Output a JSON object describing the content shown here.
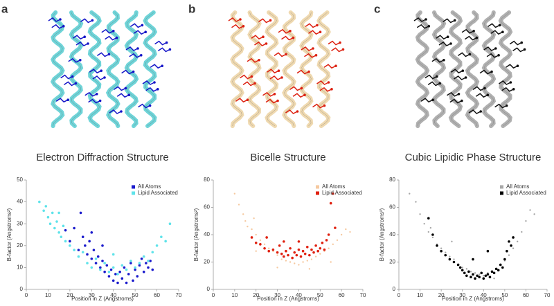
{
  "chart_data": [
    {
      "type": "scatter",
      "panel": "a",
      "title": "Electron Diffraction Structure",
      "xlabel": "Position in Z (Angstroms)",
      "ylabel": "B-factor (Angstroms²)",
      "xlim": [
        0,
        70
      ],
      "xticks": [
        0,
        10,
        20,
        30,
        40,
        50,
        60,
        70
      ],
      "ylim": [
        0,
        50
      ],
      "yticks": [
        0,
        10,
        20,
        30,
        40,
        50
      ],
      "legend": "upper right",
      "series": [
        {
          "name": "All Atoms",
          "color": "#1a1acc",
          "x": [
            18,
            20,
            22,
            24,
            25,
            26,
            27,
            28,
            29,
            30,
            31,
            32,
            33,
            34,
            35,
            36,
            37,
            38,
            39,
            40,
            41,
            42,
            43,
            44,
            45,
            46,
            47,
            48,
            49,
            50,
            51,
            52,
            53,
            54,
            55,
            56,
            57,
            58,
            30,
            35
          ],
          "values": [
            27,
            22,
            28,
            18,
            35,
            24,
            20,
            16,
            22,
            14,
            18,
            12,
            15,
            10,
            13,
            8,
            11,
            6,
            9,
            4,
            7,
            3,
            8,
            5,
            10,
            3,
            7,
            12,
            4,
            9,
            6,
            11,
            14,
            8,
            12,
            10,
            13,
            9,
            26,
            20
          ]
        },
        {
          "name": "Lipid Associated",
          "color": "#5fe3ea",
          "x": [
            6,
            8,
            9,
            10,
            11,
            12,
            13,
            14,
            15,
            16,
            17,
            18,
            20,
            22,
            24,
            26,
            28,
            30,
            32,
            34,
            36,
            38,
            40,
            42,
            44,
            46,
            48,
            50,
            52,
            54,
            56,
            58,
            60,
            62,
            64,
            66,
            15,
            40
          ],
          "values": [
            40,
            36,
            38,
            33,
            30,
            35,
            28,
            31,
            26,
            24,
            29,
            22,
            20,
            18,
            15,
            17,
            12,
            10,
            14,
            9,
            12,
            8,
            10,
            7,
            11,
            9,
            13,
            10,
            12,
            15,
            13,
            17,
            20,
            24,
            22,
            30,
            35,
            16
          ]
        }
      ]
    },
    {
      "type": "scatter",
      "panel": "b",
      "title": "Bicelle Structure",
      "xlabel": "Position in Z (Angstroms)",
      "ylabel": "B-factor (Angstroms²)",
      "xlim": [
        0,
        70
      ],
      "xticks": [
        0,
        10,
        20,
        30,
        40,
        50,
        60,
        70
      ],
      "ylim": [
        0,
        80
      ],
      "yticks": [
        0,
        20,
        40,
        60,
        80
      ],
      "legend": "upper right",
      "series": [
        {
          "name": "All Atoms",
          "color": "#f6c9a0",
          "x": [
            10,
            12,
            14,
            15,
            16,
            18,
            19,
            20,
            22,
            24,
            26,
            28,
            30,
            32,
            34,
            36,
            38,
            40,
            42,
            44,
            46,
            48,
            50,
            52,
            54,
            56,
            58,
            60,
            62,
            64,
            20,
            30,
            45,
            55
          ],
          "values": [
            70,
            62,
            55,
            50,
            46,
            44,
            52,
            40,
            36,
            33,
            30,
            28,
            25,
            22,
            21,
            20,
            19,
            18,
            20,
            21,
            22,
            24,
            26,
            28,
            30,
            33,
            36,
            40,
            44,
            42,
            28,
            16,
            15,
            20
          ]
        },
        {
          "name": "Lipid Associated",
          "color": "#e0200f",
          "x": [
            18,
            20,
            22,
            24,
            25,
            26,
            28,
            30,
            31,
            32,
            33,
            34,
            35,
            36,
            37,
            38,
            39,
            40,
            41,
            42,
            43,
            44,
            45,
            46,
            47,
            48,
            49,
            50,
            51,
            52,
            53,
            54,
            55,
            56,
            57,
            33,
            40
          ],
          "values": [
            38,
            34,
            33,
            30,
            38,
            28,
            29,
            27,
            32,
            26,
            24,
            28,
            25,
            30,
            23,
            27,
            25,
            29,
            24,
            28,
            26,
            31,
            25,
            29,
            27,
            32,
            28,
            30,
            34,
            29,
            36,
            40,
            63,
            70,
            45,
            35,
            35
          ]
        }
      ]
    },
    {
      "type": "scatter",
      "panel": "c",
      "title": "Cubic Lipidic Phase Structure",
      "xlabel": "Position in Z (Angstroms)",
      "ylabel": "B-factor (Angstroms²)",
      "xlim": [
        0,
        70
      ],
      "xticks": [
        0,
        10,
        20,
        30,
        40,
        50,
        60,
        70
      ],
      "ylim": [
        0,
        80
      ],
      "yticks": [
        0,
        20,
        40,
        60,
        80
      ],
      "legend": "upper right",
      "series": [
        {
          "name": "All Atoms",
          "color": "#a8a8a8",
          "x": [
            5,
            8,
            10,
            12,
            14,
            15,
            16,
            18,
            20,
            22,
            24,
            26,
            28,
            30,
            32,
            34,
            36,
            38,
            40,
            42,
            44,
            46,
            48,
            50,
            52,
            54,
            56,
            58,
            60,
            62,
            64,
            25,
            45
          ],
          "values": [
            70,
            64,
            55,
            48,
            42,
            45,
            38,
            33,
            30,
            27,
            24,
            22,
            18,
            16,
            15,
            13,
            12,
            11,
            10,
            12,
            13,
            15,
            18,
            21,
            25,
            30,
            35,
            42,
            50,
            58,
            55,
            35,
            8
          ]
        },
        {
          "name": "Lipid Associated",
          "color": "#000000",
          "x": [
            14,
            16,
            18,
            20,
            22,
            24,
            26,
            28,
            29,
            30,
            31,
            32,
            33,
            34,
            35,
            36,
            37,
            38,
            39,
            40,
            41,
            42,
            43,
            44,
            45,
            46,
            47,
            48,
            49,
            50,
            51,
            52,
            53,
            54,
            35,
            42
          ],
          "values": [
            52,
            40,
            32,
            28,
            25,
            22,
            20,
            18,
            16,
            14,
            12,
            10,
            13,
            9,
            11,
            8,
            10,
            9,
            12,
            8,
            10,
            11,
            9,
            13,
            12,
            15,
            14,
            18,
            16,
            22,
            28,
            35,
            32,
            38,
            22,
            28
          ]
        }
      ]
    }
  ]
}
